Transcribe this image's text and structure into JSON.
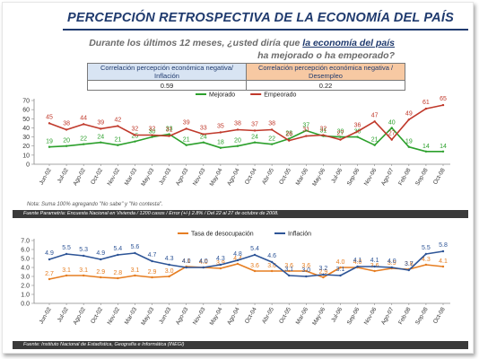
{
  "title": "PERCEPCIÓN RETROSPECTIVA DE LA ECONOMÍA DEL PAÍS",
  "question": {
    "part1": "Durante los últimos 12 meses, ¿usted diría que ",
    "highlight": "la economía del país",
    "part2": "ha mejorado o ha empeorado?"
  },
  "correlation_table": {
    "headers": [
      "Correlación percepción económica negativa/ Inflación",
      "Correlación percepción económica negativa / Desempleo"
    ],
    "values": [
      "0.59",
      "0.22"
    ]
  },
  "note": "Nota: Suma 100% agregando \"No sabe\" y \"No contesta\".",
  "source1": "Fuente Parametría: Encuesta Nacional en Vivienda / 1200 casos / Error (+/-) 2.8% / Del 22 al 27 de octubre de 2008.",
  "source2": "Fuente: Instituto Nacional de Estadística, Geografía e Informática (INEGI)",
  "colors": {
    "mejorado": "#2ca02c",
    "empeorado": "#c0392b",
    "desocupacion": "#e67e22",
    "inflacion": "#2e5597",
    "title": "#1f3a6e"
  },
  "chart_data": [
    {
      "type": "line",
      "categories": [
        "Jun-02",
        "Jul-02",
        "Ago-02",
        "Oct-02",
        "Nov-02",
        "Mar-03",
        "May-03",
        "Jun-03",
        "Ago-03",
        "Nov-03",
        "May-04",
        "Ago-04",
        "Oct-04",
        "Abr-05",
        "Oct-05",
        "Mar-06",
        "May-06",
        "Jul-06",
        "Sep-06",
        "Nov-06",
        "Ago-07",
        "Feb-08",
        "Sep-08",
        "Oct-08"
      ],
      "series": [
        {
          "name": "Mejorado",
          "values": [
            19,
            20,
            22,
            24,
            21,
            25,
            30,
            33,
            21,
            24,
            18,
            20,
            24,
            22,
            28,
            37,
            31,
            30,
            30,
            21,
            40,
            19,
            14,
            14
          ]
        },
        {
          "name": "Empeorado",
          "values": [
            45,
            38,
            44,
            39,
            42,
            32,
            32,
            31,
            39,
            33,
            35,
            38,
            37,
            38,
            26,
            31,
            32,
            27,
            36,
            47,
            27,
            49,
            61,
            65
          ]
        }
      ],
      "ylim": [
        0,
        70
      ],
      "yticks": [
        0,
        10,
        20,
        30,
        40,
        50,
        60,
        70
      ],
      "legend": "top-center",
      "grid": false
    },
    {
      "type": "line",
      "categories": [
        "Jun-02",
        "Jul-02",
        "Ago-02",
        "Oct-02",
        "Nov-02",
        "Mar-03",
        "May-03",
        "Jun-03",
        "Ago-03",
        "Nov-03",
        "May-04",
        "Ago-04",
        "Oct-04",
        "Abr-05",
        "Oct-05",
        "Mar-06",
        "May-06",
        "Jul-06",
        "Sep-06",
        "Nov-06",
        "Ago-07",
        "Feb-08",
        "Sep-08",
        "Oct-08"
      ],
      "series": [
        {
          "name": "Tasa de desocupación",
          "values": [
            2.7,
            3.1,
            3.1,
            2.9,
            2.8,
            3.1,
            2.9,
            3.0,
            4.1,
            4.0,
            3.9,
            4.4,
            3.6,
            3.6,
            3.6,
            3.6,
            2.9,
            4.0,
            4.0,
            3.6,
            3.9,
            3.8,
            4.3,
            4.1
          ]
        },
        {
          "name": "Inflación",
          "values": [
            4.9,
            5.5,
            5.3,
            4.9,
            5.4,
            5.6,
            4.7,
            4.3,
            4.0,
            4.0,
            4.3,
            4.8,
            5.4,
            4.6,
            3.1,
            3.0,
            3.2,
            3.1,
            4.1,
            4.1,
            4.0,
            3.7,
            5.5,
            5.8
          ]
        }
      ],
      "ylim": [
        0,
        7.0
      ],
      "yticks": [
        "0.0",
        "1.0",
        "2.0",
        "3.0",
        "4.0",
        "5.0",
        "6.0",
        "7.0"
      ],
      "legend": "top-center",
      "grid": false
    }
  ]
}
